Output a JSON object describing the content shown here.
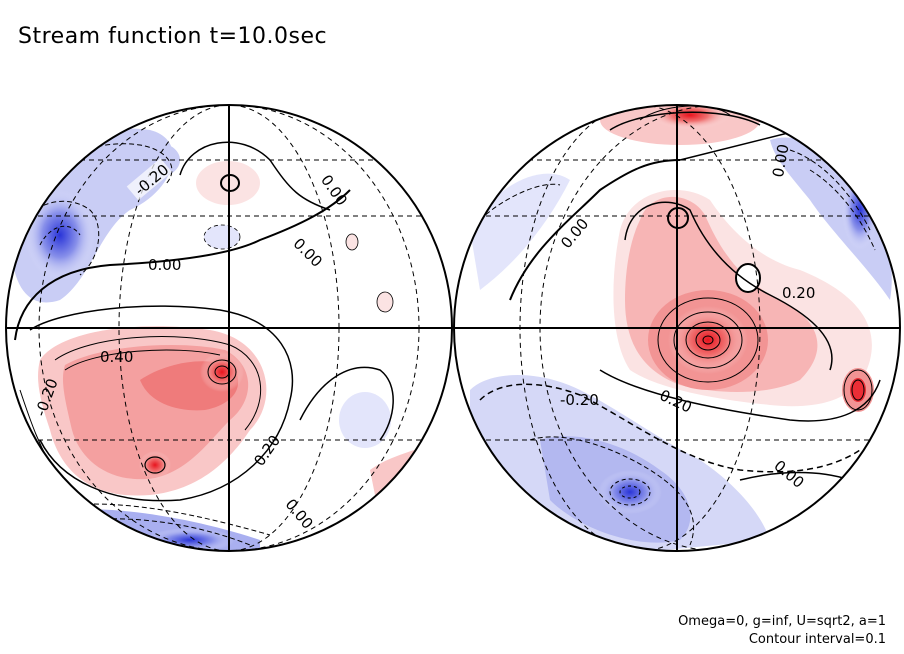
{
  "title": "Stream function t=10.0sec",
  "params": "Omega=0, g=inf, U=sqrt2, a=1",
  "contour_interval": "Contour interval=0.1",
  "colors": {
    "positive": "#e8444a",
    "positive_light": "#fbe3e3",
    "negative": "#3a45d6",
    "negative_light": "#e3e5fb",
    "line": "#000000"
  },
  "left_globe": {
    "labels": [
      "-0.20",
      "0.00",
      "0.00",
      "0.00",
      "0.40",
      "0.20",
      "-0.20",
      "0.00"
    ]
  },
  "right_globe": {
    "labels": [
      "0.00",
      "0.00",
      "0.20",
      "-0.20",
      "0.20",
      "0.00"
    ]
  }
}
